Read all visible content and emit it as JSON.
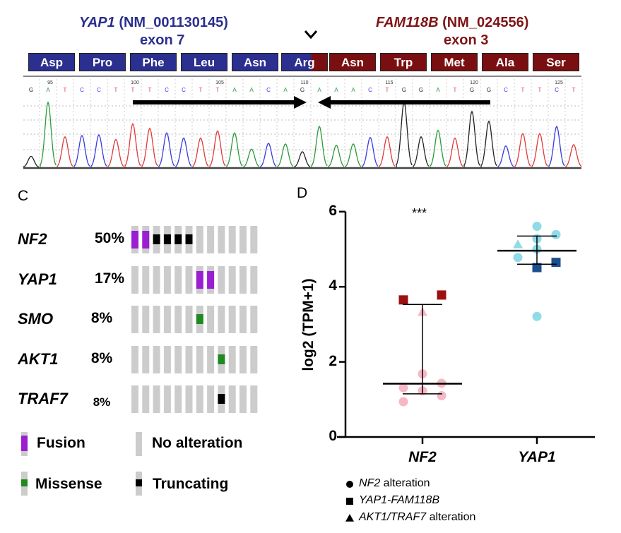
{
  "panel_b": {
    "left_gene": "YAP1",
    "left_accession": "(NM_001130145)",
    "left_exon": "exon 7",
    "right_gene": "FAM118B",
    "right_accession": "(NM_024556)",
    "right_exon": "exon 3",
    "breakpoint_icon": "chevron-down-icon",
    "amino_acids": [
      {
        "label": "Asp",
        "gene": "YAP1"
      },
      {
        "label": "Pro",
        "gene": "YAP1"
      },
      {
        "label": "Phe",
        "gene": "YAP1"
      },
      {
        "label": "Leu",
        "gene": "YAP1"
      },
      {
        "label": "Asn",
        "gene": "YAP1"
      },
      {
        "label": "Arg",
        "gene": "junction"
      },
      {
        "label": "Asn",
        "gene": "FAM118B"
      },
      {
        "label": "Trp",
        "gene": "FAM118B"
      },
      {
        "label": "Met",
        "gene": "FAM118B"
      },
      {
        "label": "Ala",
        "gene": "FAM118B"
      },
      {
        "label": "Ser",
        "gene": "FAM118B"
      }
    ],
    "colors": {
      "YAP1": "#2b2f8f",
      "FAM118B": "#7a0f12",
      "A": "#2a9a3a",
      "T": "#e0393a",
      "C": "#3a3adf",
      "G": "#222222"
    },
    "position_labels": [
      "95",
      "100",
      "105",
      "110",
      "115",
      "120",
      "125"
    ],
    "bases": [
      "G",
      "A",
      "T",
      "C",
      "C",
      "T",
      "T",
      "T",
      "C",
      "C",
      "T",
      "T",
      "A",
      "A",
      "C",
      "A",
      "G",
      "A",
      "A",
      "A",
      "C",
      "T",
      "G",
      "G",
      "A",
      "T",
      "G",
      "G",
      "C",
      "T",
      "T",
      "C",
      "T"
    ],
    "peak_intensity": [
      0.17,
      1.0,
      0.47,
      0.49,
      0.5,
      0.43,
      0.67,
      0.6,
      0.53,
      0.45,
      0.45,
      0.56,
      0.53,
      0.28,
      0.37,
      0.36,
      0.24,
      0.63,
      0.34,
      0.36,
      0.46,
      0.47,
      1.0,
      0.47,
      0.57,
      0.45,
      0.86,
      0.71,
      0.33,
      0.52,
      0.52,
      0.63,
      0.35
    ]
  },
  "panel_c": {
    "label": "C",
    "rows": [
      {
        "gene": "NF2",
        "percent": "50%",
        "alterations": [
          "fusion",
          "fusion",
          "truncating",
          "truncating",
          "truncating",
          "truncating",
          "none",
          "none",
          "none",
          "none",
          "none",
          "none"
        ]
      },
      {
        "gene": "YAP1",
        "percent": "17%",
        "alterations": [
          "none",
          "none",
          "none",
          "none",
          "none",
          "none",
          "fusion",
          "fusion",
          "none",
          "none",
          "none",
          "none"
        ]
      },
      {
        "gene": "SMO",
        "percent": "8%",
        "alterations": [
          "none",
          "none",
          "none",
          "none",
          "none",
          "none",
          "missense",
          "none",
          "none",
          "none",
          "none",
          "none"
        ]
      },
      {
        "gene": "AKT1",
        "percent": "8%",
        "alterations": [
          "none",
          "none",
          "none",
          "none",
          "none",
          "none",
          "none",
          "none",
          "missense",
          "none",
          "none",
          "none"
        ]
      },
      {
        "gene": "TRAF7",
        "percent": "8%",
        "alterations": [
          "none",
          "none",
          "none",
          "none",
          "none",
          "none",
          "none",
          "none",
          "truncating",
          "none",
          "none",
          "none"
        ]
      }
    ],
    "legend": {
      "fusion": "Fusion",
      "none": "No alteration",
      "missense": "Missense",
      "truncating": "Truncating"
    },
    "colors": {
      "fusion": "#9b1fd1",
      "none": "#cccccc",
      "missense": "#1f8a1f",
      "truncating": "#000000"
    }
  },
  "chart_data": {
    "type": "scatter",
    "panel_label": "D",
    "ylabel": "log2 (TPM+1)",
    "ylim": [
      0,
      6
    ],
    "yticks": [
      "0",
      "2",
      "4",
      "6"
    ],
    "categories": [
      "NF2",
      "YAP1"
    ],
    "significance": "***",
    "series": [
      {
        "category": "NF2",
        "color_circle": "#f5b8c4",
        "color_square": "#9c1010",
        "color_triangle": "#f5b8c4",
        "points": [
          {
            "shape": "square",
            "y": 3.65
          },
          {
            "shape": "square",
            "y": 3.78
          },
          {
            "shape": "triangle",
            "y": 3.33
          },
          {
            "shape": "circle",
            "y": 1.68
          },
          {
            "shape": "circle",
            "y": 1.31
          },
          {
            "shape": "circle",
            "y": 1.43
          },
          {
            "shape": "circle",
            "y": 1.23
          },
          {
            "shape": "circle",
            "y": 0.94
          },
          {
            "shape": "circle",
            "y": 1.1
          }
        ],
        "median": 1.42,
        "q1": 1.15,
        "q3": 3.53
      },
      {
        "category": "YAP1",
        "color_circle": "#8fdbe8",
        "color_square": "#1b4f8f",
        "color_triangle": "#8fdbe8",
        "points": [
          {
            "shape": "circle",
            "y": 5.61
          },
          {
            "shape": "circle",
            "y": 5.39
          },
          {
            "shape": "circle",
            "y": 5.28
          },
          {
            "shape": "circle",
            "y": 5.0
          },
          {
            "shape": "circle",
            "y": 4.78
          },
          {
            "shape": "circle",
            "y": 3.21
          },
          {
            "shape": "triangle",
            "y": 5.13
          },
          {
            "shape": "square",
            "y": 4.51
          },
          {
            "shape": "square",
            "y": 4.65
          }
        ],
        "median": 4.96,
        "q1": 4.6,
        "q3": 5.35
      }
    ],
    "legend": [
      {
        "shape": "circle",
        "italic": "NF2",
        "text": " alteration"
      },
      {
        "shape": "square",
        "italic": "YAP1-FAM118B",
        "text": ""
      },
      {
        "shape": "triangle",
        "italic": "AKT1/TRAF7",
        "text": " alteration"
      }
    ]
  }
}
